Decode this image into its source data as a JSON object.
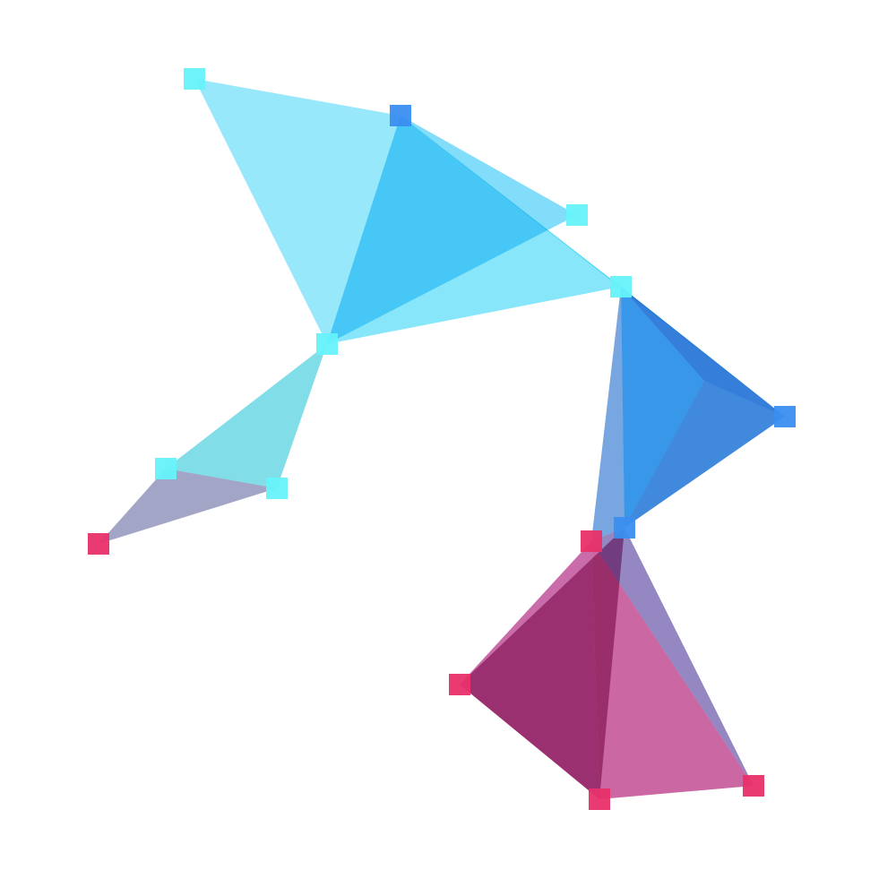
{
  "artwork": {
    "kind": "low-poly triangle mesh",
    "palette": {
      "background": "#ffffff",
      "cyan": "#66f2fa",
      "blue": "#3a8ef0",
      "magenta": "#e8306a"
    },
    "node_colors": [
      "cyan",
      "blue",
      "magenta"
    ],
    "face_colors": [
      "#7fe3f9",
      "#66d5f9",
      "#6ee1f9",
      "#71e9f9",
      "#5ab7f1",
      "#6fa1e1",
      "#5090dd",
      "#5a92da",
      "#65d6e3",
      "#8f91b9",
      "#7e6cb4",
      "#bf4c97",
      "#c0478f",
      "#b45295"
    ]
  }
}
